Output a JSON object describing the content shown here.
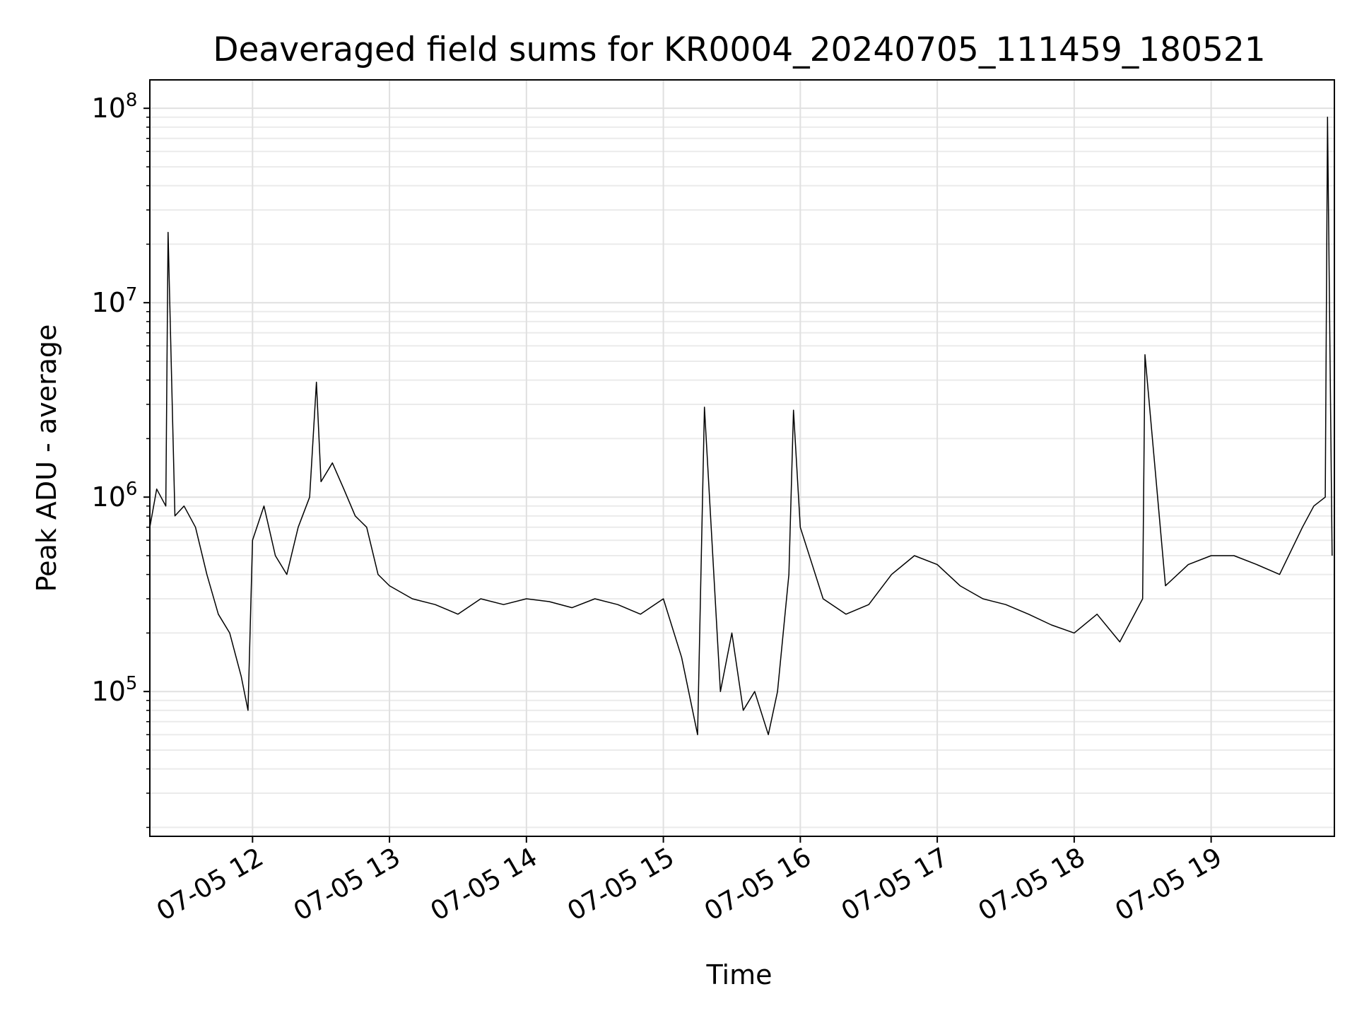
{
  "chart_data": {
    "type": "line",
    "title": "Deaveraged field sums for KR0004_20240705_111459_180521",
    "xlabel": "Time",
    "ylabel": "Peak ADU - average",
    "yscale": "log",
    "ylim": [
      18000,
      140000000
    ],
    "xlim": [
      "2024-07-05 11:15",
      "2024-07-05 19:54"
    ],
    "grid": true,
    "line_color": "#000000",
    "x_ticks": [
      {
        "label": "07-05 12",
        "value": "2024-07-05 12:00"
      },
      {
        "label": "07-05 13",
        "value": "2024-07-05 13:00"
      },
      {
        "label": "07-05 14",
        "value": "2024-07-05 14:00"
      },
      {
        "label": "07-05 15",
        "value": "2024-07-05 15:00"
      },
      {
        "label": "07-05 16",
        "value": "2024-07-05 16:00"
      },
      {
        "label": "07-05 17",
        "value": "2024-07-05 17:00"
      },
      {
        "label": "07-05 18",
        "value": "2024-07-05 18:00"
      },
      {
        "label": "07-05 19",
        "value": "2024-07-05 19:00"
      }
    ],
    "y_ticks": [
      {
        "base": "10",
        "exp": "5",
        "value": 100000
      },
      {
        "base": "10",
        "exp": "6",
        "value": 1000000
      },
      {
        "base": "10",
        "exp": "7",
        "value": 10000000
      },
      {
        "base": "10",
        "exp": "8",
        "value": 100000000
      }
    ],
    "series": [
      {
        "x": [
          "2024-07-05 11:15",
          "2024-07-05 11:18",
          "2024-07-05 11:22",
          "2024-07-05 11:23",
          "2024-07-05 11:26",
          "2024-07-05 11:30",
          "2024-07-05 11:35",
          "2024-07-05 11:40",
          "2024-07-05 11:45",
          "2024-07-05 11:50",
          "2024-07-05 11:55",
          "2024-07-05 11:58",
          "2024-07-05 12:00",
          "2024-07-05 12:05",
          "2024-07-05 12:10",
          "2024-07-05 12:15",
          "2024-07-05 12:20",
          "2024-07-05 12:25",
          "2024-07-05 12:28",
          "2024-07-05 12:30",
          "2024-07-05 12:35",
          "2024-07-05 12:40",
          "2024-07-05 12:45",
          "2024-07-05 12:50",
          "2024-07-05 12:55",
          "2024-07-05 13:00",
          "2024-07-05 13:10",
          "2024-07-05 13:20",
          "2024-07-05 13:30",
          "2024-07-05 13:40",
          "2024-07-05 13:50",
          "2024-07-05 14:00",
          "2024-07-05 14:10",
          "2024-07-05 14:20",
          "2024-07-05 14:30",
          "2024-07-05 14:40",
          "2024-07-05 14:50",
          "2024-07-05 15:00",
          "2024-07-05 15:08",
          "2024-07-05 15:15",
          "2024-07-05 15:18",
          "2024-07-05 15:25",
          "2024-07-05 15:30",
          "2024-07-05 15:35",
          "2024-07-05 15:40",
          "2024-07-05 15:46",
          "2024-07-05 15:50",
          "2024-07-05 15:55",
          "2024-07-05 15:57",
          "2024-07-05 16:00",
          "2024-07-05 16:10",
          "2024-07-05 16:20",
          "2024-07-05 16:30",
          "2024-07-05 16:40",
          "2024-07-05 16:50",
          "2024-07-05 17:00",
          "2024-07-05 17:10",
          "2024-07-05 17:20",
          "2024-07-05 17:30",
          "2024-07-05 17:40",
          "2024-07-05 17:50",
          "2024-07-05 18:00",
          "2024-07-05 18:10",
          "2024-07-05 18:20",
          "2024-07-05 18:30",
          "2024-07-05 18:31",
          "2024-07-05 18:40",
          "2024-07-05 18:50",
          "2024-07-05 19:00",
          "2024-07-05 19:10",
          "2024-07-05 19:20",
          "2024-07-05 19:30",
          "2024-07-05 19:40",
          "2024-07-05 19:45",
          "2024-07-05 19:50",
          "2024-07-05 19:51",
          "2024-07-05 19:53"
        ],
        "y": [
          700000,
          1100000,
          900000,
          23000000,
          800000,
          900000,
          700000,
          400000,
          250000,
          200000,
          120000,
          80000,
          600000,
          900000,
          500000,
          400000,
          700000,
          1000000,
          3900000,
          1200000,
          1500000,
          1100000,
          800000,
          700000,
          400000,
          350000,
          300000,
          280000,
          250000,
          300000,
          280000,
          300000,
          290000,
          270000,
          300000,
          280000,
          250000,
          300000,
          150000,
          60000,
          2900000,
          100000,
          200000,
          80000,
          100000,
          60000,
          100000,
          400000,
          2800000,
          700000,
          300000,
          250000,
          280000,
          400000,
          500000,
          450000,
          350000,
          300000,
          280000,
          250000,
          220000,
          200000,
          250000,
          180000,
          300000,
          5400000,
          350000,
          450000,
          500000,
          500000,
          450000,
          400000,
          700000,
          900000,
          1000000,
          90000000,
          500000
        ]
      }
    ]
  }
}
